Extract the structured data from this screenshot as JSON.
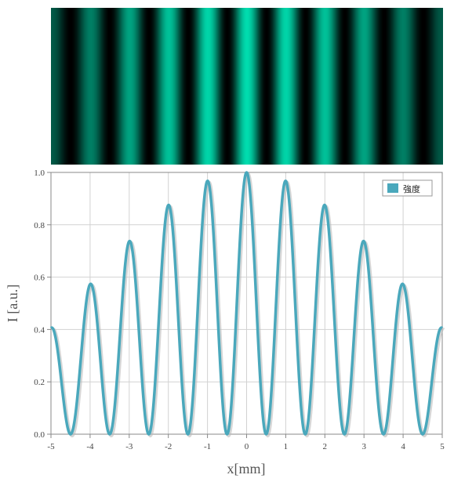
{
  "chart_data": {
    "type": "line",
    "title": "",
    "xlabel": "x[mm]",
    "ylabel": "I [a.u.]",
    "xlim": [
      -5,
      5
    ],
    "ylim": [
      0,
      1
    ],
    "x_ticks": [
      "-5",
      "-4",
      "-3",
      "-2",
      "-1",
      "0",
      "1",
      "2",
      "3",
      "4",
      "5"
    ],
    "y_ticks": [
      "0.0",
      "0.2",
      "0.4",
      "0.6",
      "0.8",
      "1.0"
    ],
    "grid": true,
    "legend_position": "top-right",
    "series": [
      {
        "name": "強度",
        "color": "#4aa8bc",
        "x": [
          -5,
          -4.5,
          -4,
          -3.5,
          -3,
          -2.5,
          -2,
          -1.5,
          -1,
          -0.5,
          0,
          0.5,
          1,
          1.5,
          2,
          2.5,
          3,
          3.5,
          4,
          4.5,
          5
        ],
        "y": [
          0.405,
          0,
          0.573,
          0,
          0.736,
          0,
          0.875,
          0,
          0.968,
          0,
          1.0,
          0,
          0.968,
          0,
          0.875,
          0,
          0.736,
          0,
          0.573,
          0,
          0.405
        ],
        "model": "I(x) = cos^2(pi x) * sinc^2(x/10)"
      }
    ]
  },
  "fringe_image": {
    "colormap": [
      "#000000",
      "#00dcae"
    ],
    "x_range": [
      -5,
      5
    ]
  },
  "colors": {
    "grid": "#d2d2d2",
    "axis": "#888888",
    "line": "#4aa8bc",
    "shadow": "#bbbbbb"
  }
}
